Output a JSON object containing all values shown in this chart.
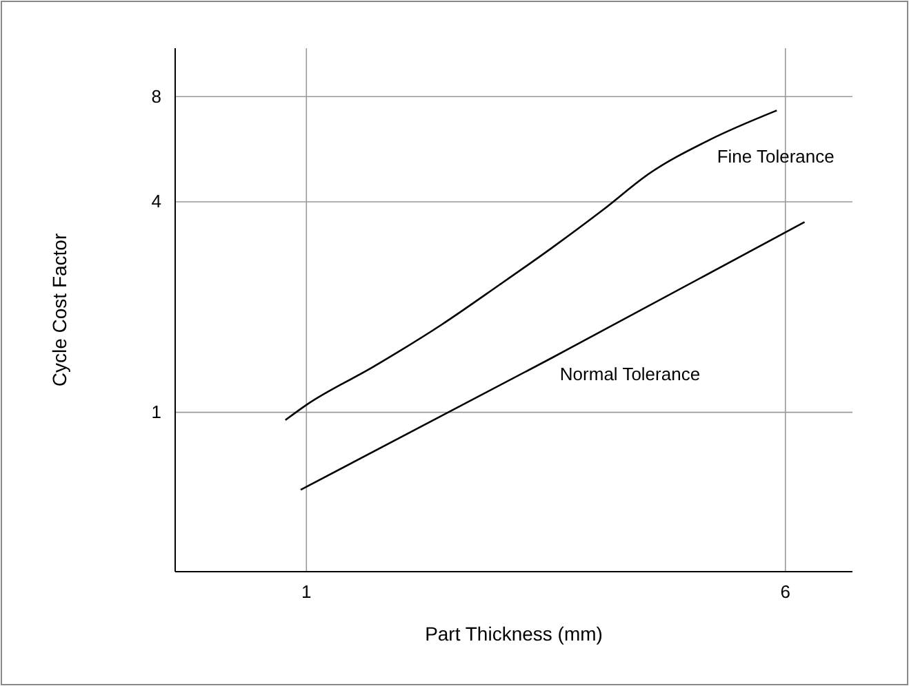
{
  "chart_data": {
    "type": "line",
    "xlabel": "Part Thickness (mm)",
    "ylabel": "Cycle Cost Factor",
    "log": "y",
    "xlim": [
      -0.37,
      6.7
    ],
    "ylim": [
      0.35,
      11
    ],
    "xticks": [
      1,
      6
    ],
    "yticks": [
      1,
      4,
      8
    ],
    "grid": true,
    "legend": false,
    "line_style": "solid",
    "marker": "none",
    "series": [
      {
        "name": "Fine Tolerance",
        "color": "#000000",
        "x": [
          0.78,
          1.0,
          1.7,
          2.41,
          3.0,
          3.56,
          4.1,
          4.57,
          5.2,
          5.91
        ],
        "values": [
          0.95,
          1.05,
          1.35,
          1.78,
          2.3,
          2.95,
          3.8,
          4.8,
          6.0,
          7.3
        ]
      },
      {
        "name": "Normal Tolerance",
        "color": "#000000",
        "x": [
          0.94,
          3.56,
          6.2
        ],
        "values": [
          0.6,
          1.43,
          3.5
        ]
      }
    ]
  }
}
